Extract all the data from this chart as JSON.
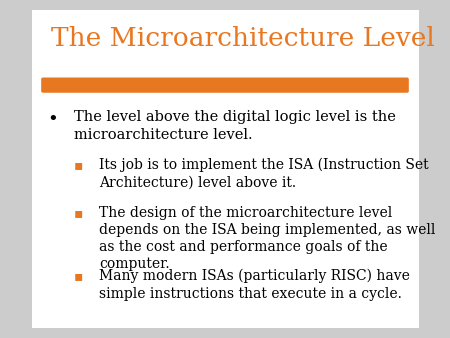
{
  "title": "The Microarchitecture Level",
  "title_color": "#E87722",
  "bg_color": "#FFFFFF",
  "slide_bg": "#CCCCCC",
  "divider_color": "#E87722",
  "bullet_text": "The level above the digital logic level is the\nmicroarchitecture level.",
  "sub_bullets": [
    "Its job is to implement the ISA (Instruction Set\nArchitecture) level above it.",
    "The design of the microarchitecture level\ndepends on the ISA being implemented, as well\nas the cost and performance goals of the\ncomputer.",
    "Many modern ISAs (particularly RISC) have\nsimple instructions that execute in a cycle."
  ],
  "sub_bullet_color": "#E87722",
  "text_color": "#000000",
  "font_family": "DejaVu Serif",
  "title_fontsize": 19,
  "body_fontsize": 10.5,
  "sub_fontsize": 10.0
}
